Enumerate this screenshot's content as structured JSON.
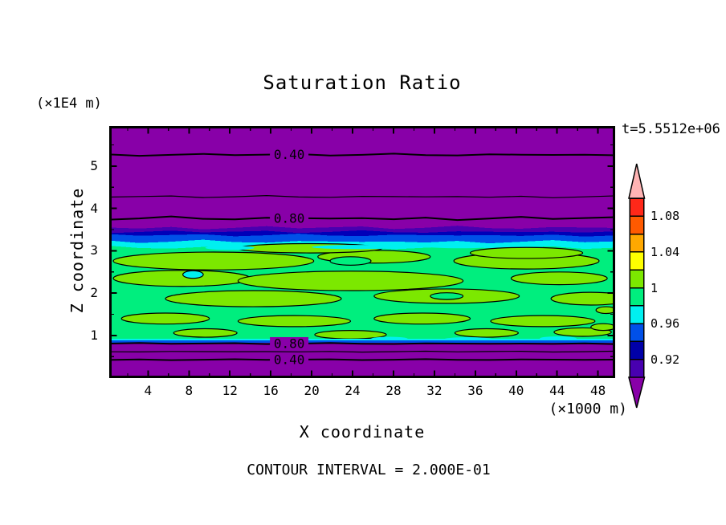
{
  "title": "Saturation Ratio",
  "time_annotation": "t=5.5512e+06",
  "footer_note": "CONTOUR INTERVAL = 2.000E-01",
  "x_axis": {
    "label": "X coordinate",
    "unit": "(×1000 m)",
    "major_ticks": [
      4,
      8,
      12,
      16,
      20,
      24,
      28,
      32,
      36,
      40,
      44,
      48
    ],
    "minor_tick_step": 2,
    "range_km": [
      0,
      49.6
    ]
  },
  "y_axis": {
    "label": "Z coordinate",
    "unit": "(×1E4 m)",
    "major_ticks": [
      1,
      2,
      3,
      4,
      5
    ],
    "minor_tick_step": 0.5,
    "range": [
      0,
      5.95
    ]
  },
  "colorbar": {
    "boundary_labels": [
      "1.08",
      "1.04",
      "1",
      "0.96",
      "0.92"
    ],
    "label_boundary_idx": [
      1,
      3,
      5,
      7,
      9
    ],
    "levels_top_to_bottom": [
      1.1,
      1.08,
      1.06,
      1.04,
      1.02,
      1.0,
      0.98,
      0.96,
      0.94,
      0.92,
      0.9
    ],
    "cell_colors_top_to_bottom": [
      "#ff2819",
      "#ff5a00",
      "#ffa800",
      "#ffff00",
      "#7ce800",
      "#00ee7e",
      "#00f0f0",
      "#0050e8",
      "#0000a8",
      "#4800b0"
    ],
    "over_arrow_color": "#ffb4b4",
    "under_arrow_color": "#8800a8"
  },
  "chart_data": {
    "type": "heatmap",
    "field": "Saturation Ratio",
    "title": "Saturation Ratio",
    "xlabel": "X coordinate",
    "ylabel": "Z coordinate",
    "xlim_km": [
      0,
      49.6
    ],
    "zlim_1e4m": [
      0,
      5.95
    ],
    "contour_interval": 0.2,
    "shading_interval": 0.02,
    "contour_label_x_km": 17.8,
    "line_contours": [
      {
        "value": 0.4,
        "z": 5.27,
        "label": "0.40"
      },
      {
        "value": 0.6,
        "z": 4.28,
        "label": null
      },
      {
        "value": 0.8,
        "z": 3.77,
        "label": "0.80"
      },
      {
        "value": 0.8,
        "z": 0.81,
        "label": "0.80"
      },
      {
        "value": 0.6,
        "z": 0.62,
        "label": null
      },
      {
        "value": 0.4,
        "z": 0.43,
        "label": "0.40"
      }
    ],
    "bands": [
      {
        "color": "#8800a8",
        "z": [
          3.55,
          5.95
        ],
        "value_range": "<0.90",
        "wavy": true,
        "amp": 0,
        "ph": 0
      },
      {
        "color": "#4800b0",
        "z": [
          3.45,
          3.55
        ],
        "value_range": "0.90-0.92",
        "wavy": true,
        "amp": 2.5,
        "ph": 0
      },
      {
        "color": "#0000b8",
        "z": [
          3.37,
          3.45
        ],
        "value_range": "0.92-0.94",
        "wavy": true,
        "amp": 2.0,
        "ph": 3
      },
      {
        "color": "#0050e8",
        "z": [
          3.22,
          3.37
        ],
        "value_range": "0.94-0.96",
        "wavy": true,
        "amp": 2.0,
        "ph": 5
      },
      {
        "color": "#00f0f0",
        "z": [
          3.08,
          3.22
        ],
        "value_range": "0.96-0.98",
        "wavy": true,
        "amp": 2.5,
        "ph": 8
      },
      {
        "color": "#00ee7e",
        "z": [
          0.925,
          3.08
        ],
        "value_range": "0.98-1.00",
        "wavy": true,
        "amp": 2.5,
        "ph": 11
      },
      {
        "color": "#00f0f0",
        "z": [
          0.885,
          0.925
        ],
        "value_range": "0.96-0.98",
        "wavy": false,
        "amp": 0,
        "ph": 0
      },
      {
        "color": "#0050e8",
        "z": [
          0.83,
          0.885
        ],
        "value_range": "0.94-0.96",
        "wavy": false,
        "amp": 0,
        "ph": 0
      },
      {
        "color": "#8800a8",
        "z": [
          0,
          0.83
        ],
        "value_range": "<0.90",
        "wavy": false,
        "amp": 0,
        "ph": 0
      }
    ],
    "patches": [
      {
        "x": 10.4,
        "z": 2.76,
        "rx": 9.8,
        "rz": 0.21,
        "c": "#7ce800",
        "s": true
      },
      {
        "x": 26.1,
        "z": 2.86,
        "rx": 5.5,
        "rz": 0.15,
        "c": "#7ce800",
        "s": true
      },
      {
        "x": 41.0,
        "z": 2.76,
        "rx": 7.1,
        "rz": 0.19,
        "c": "#7ce800",
        "s": true
      },
      {
        "x": 7.3,
        "z": 2.35,
        "rx": 6.7,
        "rz": 0.19,
        "c": "#7ce800",
        "s": true
      },
      {
        "x": 23.8,
        "z": 2.29,
        "rx": 11.0,
        "rz": 0.23,
        "c": "#7ce800",
        "s": true
      },
      {
        "x": 44.2,
        "z": 2.35,
        "rx": 4.7,
        "rz": 0.15,
        "c": "#7ce800",
        "s": true
      },
      {
        "x": 14.3,
        "z": 1.87,
        "rx": 8.6,
        "rz": 0.19,
        "c": "#7ce800",
        "s": true
      },
      {
        "x": 33.2,
        "z": 1.93,
        "rx": 7.1,
        "rz": 0.17,
        "c": "#7ce800",
        "s": true
      },
      {
        "x": 47.3,
        "z": 1.87,
        "rx": 3.9,
        "rz": 0.15,
        "c": "#7ce800",
        "s": true
      },
      {
        "x": 5.7,
        "z": 1.4,
        "rx": 4.3,
        "rz": 0.13,
        "c": "#7ce800",
        "s": true
      },
      {
        "x": 18.3,
        "z": 1.34,
        "rx": 5.5,
        "rz": 0.13,
        "c": "#7ce800",
        "s": true
      },
      {
        "x": 30.8,
        "z": 1.4,
        "rx": 4.7,
        "rz": 0.13,
        "c": "#7ce800",
        "s": true
      },
      {
        "x": 42.6,
        "z": 1.34,
        "rx": 5.1,
        "rz": 0.13,
        "c": "#7ce800",
        "s": true
      },
      {
        "x": 9.6,
        "z": 1.06,
        "rx": 3.1,
        "rz": 0.1,
        "c": "#7ce800",
        "s": true
      },
      {
        "x": 23.8,
        "z": 1.02,
        "rx": 3.5,
        "rz": 0.1,
        "c": "#7ce800",
        "s": true
      },
      {
        "x": 37.1,
        "z": 1.06,
        "rx": 3.1,
        "rz": 0.1,
        "c": "#7ce800",
        "s": true
      },
      {
        "x": 46.5,
        "z": 1.08,
        "rx": 2.8,
        "rz": 0.1,
        "c": "#7ce800",
        "s": true
      },
      {
        "x": 19.8,
        "z": 3.06,
        "rx": 7.1,
        "rz": 0.11,
        "c": "#7ce800",
        "s": true
      },
      {
        "x": 41.0,
        "z": 2.95,
        "rx": 5.5,
        "rz": 0.13,
        "c": "#7ce800",
        "s": true
      },
      {
        "x": 48.5,
        "z": 1.2,
        "rx": 1.2,
        "rz": 0.08,
        "c": "#7ce800",
        "s": true
      },
      {
        "x": 48.8,
        "z": 1.6,
        "rx": 1.0,
        "rz": 0.08,
        "c": "#7ce800",
        "s": true
      },
      {
        "x": 23.8,
        "z": 2.76,
        "rx": 2.0,
        "rz": 0.1,
        "c": "#00ee7e",
        "s": true
      },
      {
        "x": 33.2,
        "z": 1.93,
        "rx": 1.6,
        "rz": 0.08,
        "c": "#00ee7e",
        "s": true
      },
      {
        "x": 8.4,
        "z": 2.44,
        "rx": 1.0,
        "rz": 0.09,
        "c": "#00f0f0",
        "s": true
      },
      {
        "x": 12.0,
        "z": 3.07,
        "rx": 2.4,
        "rz": 0.05,
        "c": "#00f0f0",
        "s": false
      },
      {
        "x": 24.5,
        "z": 3.09,
        "rx": 4.5,
        "rz": 0.05,
        "c": "#00f0f0",
        "s": false
      },
      {
        "x": 34.5,
        "z": 3.1,
        "rx": 3.2,
        "rz": 0.04,
        "c": "#00f0f0",
        "s": false
      },
      {
        "x": 27.6,
        "z": 0.92,
        "rx": 1.8,
        "rz": 0.05,
        "c": "#00f0f0",
        "s": false
      },
      {
        "x": 35.3,
        "z": 0.91,
        "rx": 2.4,
        "rz": 0.05,
        "c": "#00f0f0",
        "s": false
      },
      {
        "x": 44.1,
        "z": 0.93,
        "rx": 1.8,
        "rz": 0.05,
        "c": "#00f0f0",
        "s": false
      }
    ]
  }
}
